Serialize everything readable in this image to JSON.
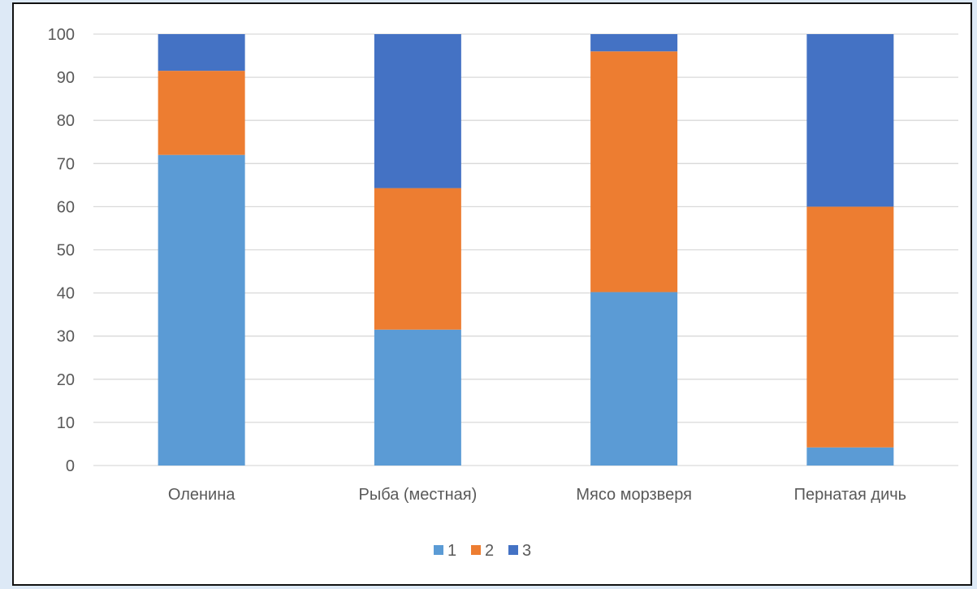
{
  "chart_data": {
    "type": "bar",
    "stacked": true,
    "categories": [
      "Оленина",
      "Рыба (местная)",
      "Мясо морзверя",
      "Пернатая дичь"
    ],
    "series": [
      {
        "name": "1",
        "values": [
          72,
          31.5,
          40.2,
          4.2
        ],
        "color": "#5b9bd5"
      },
      {
        "name": "2",
        "values": [
          19.5,
          32.8,
          55.8,
          55.8
        ],
        "color": "#ed7d31"
      },
      {
        "name": "3",
        "values": [
          8.5,
          35.7,
          4,
          40
        ],
        "color": "#4472c4"
      }
    ],
    "ylim": [
      0,
      100
    ],
    "yticks": [
      0,
      10,
      20,
      30,
      40,
      50,
      60,
      70,
      80,
      90,
      100
    ],
    "grid": true,
    "legend": "bottom",
    "gridline_color": "#d9d9d9"
  }
}
